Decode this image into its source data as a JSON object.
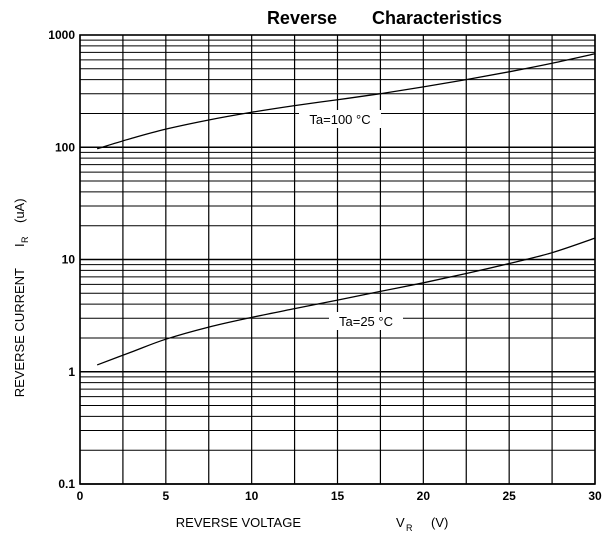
{
  "chart_data": {
    "type": "line",
    "title_part1": "Reverse",
    "title_part2": "Characteristics",
    "xlabel": "REVERSE VOLTAGE",
    "xlabel_symbol": "V",
    "xlabel_subscript": "R",
    "xlabel_unit": "(V)",
    "ylabel": "REVERSE CURRENT",
    "ylabel_symbol": "I",
    "ylabel_subscript": "R",
    "ylabel_unit": "(uA)",
    "y_scale": "log",
    "xlim": [
      0,
      30
    ],
    "ylim": [
      0.1,
      1000
    ],
    "x_ticks": [
      0,
      5,
      10,
      15,
      20,
      25,
      30
    ],
    "x_tick_labels": [
      "0",
      "5",
      "10",
      "15",
      "20",
      "25",
      "30"
    ],
    "y_ticks": [
      0.1,
      1,
      10,
      100,
      1000
    ],
    "y_tick_labels": [
      "0.1",
      "1",
      "10",
      "100",
      "1000"
    ],
    "grid": true,
    "series": [
      {
        "name": "Ta=100 °C",
        "x": [
          1,
          3,
          5,
          7.5,
          10,
          12.5,
          15,
          17.5,
          20,
          22.5,
          25,
          27.5,
          30
        ],
        "y": [
          97,
          120,
          145,
          175,
          205,
          235,
          265,
          300,
          345,
          400,
          470,
          560,
          680
        ]
      },
      {
        "name": "Ta=25 °C",
        "x": [
          1,
          3,
          5,
          7.5,
          10,
          12.5,
          15,
          17.5,
          20,
          22.5,
          25,
          27.5,
          30
        ],
        "y": [
          1.15,
          1.5,
          1.95,
          2.5,
          3.05,
          3.65,
          4.35,
          5.2,
          6.2,
          7.5,
          9.2,
          11.5,
          15.5
        ]
      }
    ],
    "annotations": [
      {
        "text": "Ta=100 °C",
        "series": 0
      },
      {
        "text": "Ta=25 °C",
        "series": 1
      }
    ]
  }
}
